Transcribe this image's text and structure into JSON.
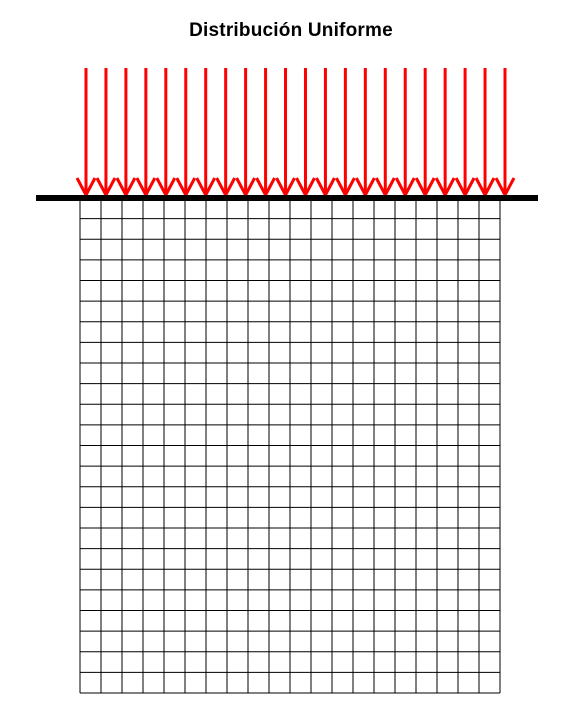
{
  "diagram": {
    "title": "Distribución Uniforme",
    "load_arrow_count": 22,
    "grid_columns": 20,
    "grid_rows": 24,
    "colors": {
      "arrow": "#ff0000",
      "surface": "#000000",
      "grid": "#000000",
      "background": "#ffffff"
    }
  }
}
